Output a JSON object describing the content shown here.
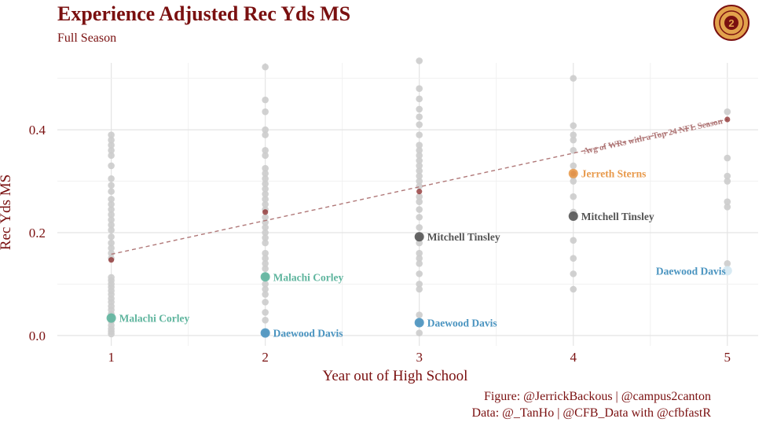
{
  "header": {
    "title": "Experience Adjusted Rec Yds MS",
    "subtitle": "Full Season"
  },
  "caption": {
    "line1": "Figure: @JerrickBackous | @campus2canton",
    "line2": "Data: @_TanHo | @CFB_Data with @cfbfastR"
  },
  "colors": {
    "title": "#7a1010",
    "background_points": "#cccccc",
    "avg_points": "#8b2a2a",
    "trend_line": "#b07878",
    "corley": "#5fb59e",
    "davis": "#4a94c0",
    "davis_y5": "#d4e8f2",
    "tinsley": "#555555",
    "sterns": "#e89a4c",
    "logo_outer": "#e2a24c",
    "logo_inner": "#7a1010"
  },
  "chart_data": {
    "type": "scatter",
    "title": "Experience Adjusted Rec Yds MS",
    "subtitle": "Full Season",
    "xlabel": "Year out of High School",
    "ylabel": "Rec Yds MS",
    "xlim": [
      0.65,
      5.2
    ],
    "ylim": [
      -0.02,
      0.53
    ],
    "x_ticks": [
      1,
      2,
      3,
      4,
      5
    ],
    "y_ticks": [
      0.0,
      0.2,
      0.4
    ],
    "y_tick_labels": [
      "0.0",
      "0.2",
      "0.4"
    ],
    "grid": true,
    "background_series": [
      {
        "x": 1,
        "values": [
          0.003,
          0.008,
          0.013,
          0.02,
          0.028,
          0.035,
          0.042,
          0.05,
          0.057,
          0.065,
          0.072,
          0.08,
          0.087,
          0.094,
          0.1,
          0.107,
          0.113,
          0.15,
          0.16,
          0.17,
          0.18,
          0.192,
          0.205,
          0.215,
          0.225,
          0.235,
          0.245,
          0.255,
          0.265,
          0.28,
          0.292,
          0.305,
          0.33,
          0.35,
          0.36,
          0.37,
          0.38,
          0.39
        ]
      },
      {
        "x": 2,
        "values": [
          0.005,
          0.03,
          0.045,
          0.065,
          0.08,
          0.09,
          0.1,
          0.115,
          0.13,
          0.14,
          0.15,
          0.16,
          0.18,
          0.19,
          0.2,
          0.21,
          0.22,
          0.23,
          0.245,
          0.255,
          0.265,
          0.275,
          0.285,
          0.295,
          0.305,
          0.315,
          0.325,
          0.35,
          0.36,
          0.39,
          0.4,
          0.435,
          0.458,
          0.522
        ]
      },
      {
        "x": 3,
        "values": [
          0.005,
          0.025,
          0.04,
          0.09,
          0.1,
          0.12,
          0.14,
          0.15,
          0.16,
          0.18,
          0.19,
          0.21,
          0.23,
          0.245,
          0.26,
          0.27,
          0.29,
          0.3,
          0.31,
          0.32,
          0.33,
          0.34,
          0.35,
          0.36,
          0.37,
          0.39,
          0.41,
          0.425,
          0.44,
          0.46,
          0.48,
          0.534
        ]
      },
      {
        "x": 4,
        "values": [
          0.09,
          0.12,
          0.15,
          0.185,
          0.24,
          0.27,
          0.3,
          0.31,
          0.33,
          0.36,
          0.38,
          0.39,
          0.408,
          0.5
        ]
      },
      {
        "x": 5,
        "values": [
          0.14,
          0.25,
          0.26,
          0.3,
          0.31,
          0.345,
          0.435
        ]
      }
    ],
    "average_points": [
      {
        "x": 1,
        "y": 0.147
      },
      {
        "x": 2,
        "y": 0.24
      },
      {
        "x": 3,
        "y": 0.28
      },
      {
        "x": 4,
        "y": 0.315
      },
      {
        "x": 5,
        "y": 0.42
      }
    ],
    "trend_line": {
      "x": [
        1,
        5
      ],
      "y": [
        0.158,
        0.42
      ],
      "label": "Avg of WRs with a Top 24 NFL Season"
    },
    "highlighted_series": [
      {
        "name": "Malachi Corley",
        "color_key": "corley",
        "points": [
          {
            "x": 1,
            "y": 0.034
          },
          {
            "x": 2,
            "y": 0.114
          }
        ]
      },
      {
        "name": "Daewood Davis",
        "color_key": "davis",
        "points": [
          {
            "x": 2,
            "y": 0.005
          },
          {
            "x": 3,
            "y": 0.025
          },
          {
            "x": 5,
            "y": 0.126
          }
        ]
      },
      {
        "name": "Mitchell Tinsley",
        "color_key": "tinsley",
        "points": [
          {
            "x": 3,
            "y": 0.192
          },
          {
            "x": 4,
            "y": 0.232
          }
        ]
      },
      {
        "name": "Jerreth Sterns",
        "color_key": "sterns",
        "points": [
          {
            "x": 4,
            "y": 0.315
          }
        ]
      }
    ]
  }
}
